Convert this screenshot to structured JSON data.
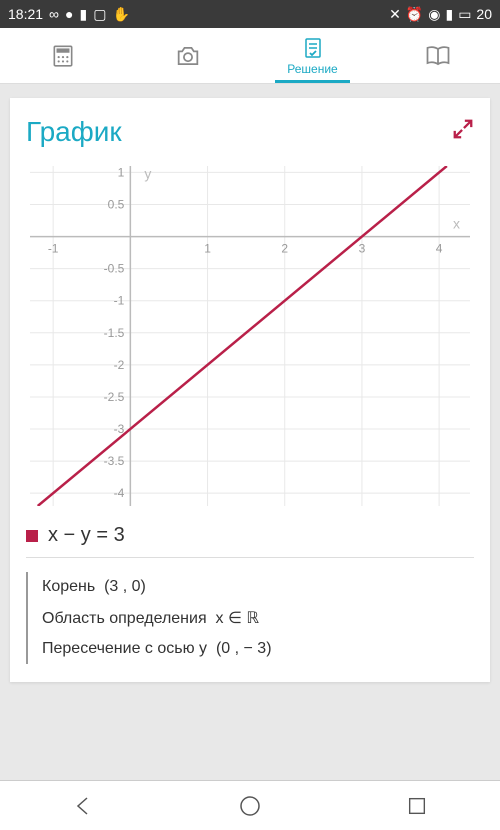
{
  "status": {
    "time": "18:21",
    "battery": "20"
  },
  "tabs": {
    "solution_label": "Решение"
  },
  "card": {
    "title": "График"
  },
  "chart": {
    "type": "line",
    "xlim": [
      -1.3,
      4.4
    ],
    "ylim": [
      -4.2,
      1.1
    ],
    "xticks": [
      -1,
      0,
      1,
      2,
      3,
      4
    ],
    "yticks": [
      1,
      0.5,
      -0.5,
      -1,
      -1.5,
      -2,
      -2.5,
      -3,
      -3.5,
      -4
    ],
    "x_axis_label": "x",
    "y_axis_label": "y",
    "line_color": "#b92049",
    "grid_color": "#e8e8e8",
    "axis_color": "#bbbbbb",
    "label_color": "#999999",
    "line_points": [
      [
        -1.2,
        -4.2
      ],
      [
        4.1,
        1.1
      ]
    ]
  },
  "equation": "x − y = 3",
  "properties": {
    "root_label": "Корень",
    "root_value": "(3 , 0)",
    "domain_label": "Область определения",
    "domain_value": "x ∈ ℝ",
    "yint_label": "Пересечение с осью y",
    "yint_value": "(0 , − 3)"
  },
  "colors": {
    "accent": "#1ba9c4",
    "series": "#b92049"
  }
}
